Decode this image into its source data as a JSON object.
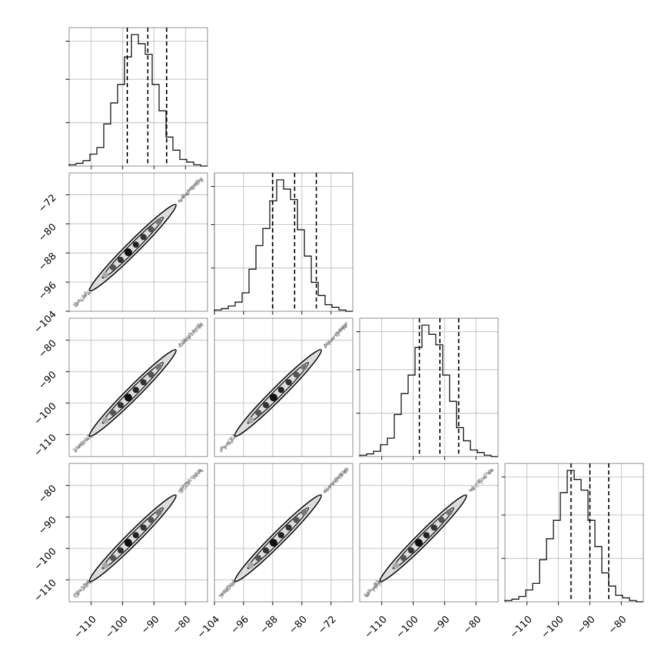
{
  "chart_data": {
    "type": "corner",
    "n_params": 4,
    "colors": {
      "line": "#000000",
      "grid": "#b0b0b0",
      "points": "#888888",
      "contour_fill": "#dcdcdc"
    },
    "grid": true,
    "ranges": [
      {
        "min": -117,
        "max": -73
      },
      {
        "min": -104,
        "max": -66
      },
      {
        "min": -117,
        "max": -73
      },
      {
        "min": -117,
        "max": -73
      }
    ],
    "tick_labels": [
      [
        "−110",
        "−100",
        "−90",
        "−80"
      ],
      [
        "−104",
        "−96",
        "−88",
        "−80",
        "−72"
      ],
      [
        "−110",
        "−100",
        "−90",
        "−80"
      ],
      [
        "−110",
        "−100",
        "−90",
        "−80"
      ]
    ],
    "tick_values": [
      [
        -110,
        -100,
        -90,
        -80
      ],
      [
        -104,
        -96,
        -88,
        -80,
        -72
      ],
      [
        -110,
        -100,
        -90,
        -80
      ],
      [
        -110,
        -100,
        -90,
        -80
      ]
    ],
    "quantiles": [
      {
        "q16": -98.5,
        "q50": -92.0,
        "q84": -86.0
      },
      {
        "q16": -88.0,
        "q50": -82.0,
        "q84": -76.0
      },
      {
        "q16": -98.0,
        "q50": -91.5,
        "q84": -85.5
      },
      {
        "q16": -96.0,
        "q50": -90.0,
        "q84": -84.0
      }
    ],
    "histograms": [
      {
        "bin_start": -117,
        "bin_width": 2.2,
        "counts": [
          1,
          2,
          4,
          9,
          14,
          32,
          48,
          62,
          83,
          100,
          93,
          85,
          62,
          42,
          22,
          12,
          5,
          3,
          1,
          0
        ]
      },
      {
        "bin_start": -104,
        "bin_width": 1.9,
        "counts": [
          1,
          2,
          4,
          7,
          14,
          32,
          50,
          63,
          84,
          100,
          93,
          85,
          62,
          42,
          22,
          12,
          5,
          3,
          1,
          0
        ]
      },
      {
        "bin_start": -117,
        "bin_width": 2.2,
        "counts": [
          1,
          2,
          4,
          9,
          14,
          32,
          48,
          62,
          83,
          100,
          93,
          85,
          62,
          42,
          22,
          12,
          5,
          3,
          1,
          0
        ]
      },
      {
        "bin_start": -117,
        "bin_width": 2.2,
        "counts": [
          1,
          2,
          4,
          9,
          14,
          32,
          48,
          62,
          83,
          100,
          93,
          85,
          62,
          42,
          22,
          12,
          5,
          3,
          1,
          0
        ]
      }
    ],
    "hist_max": 100
  }
}
